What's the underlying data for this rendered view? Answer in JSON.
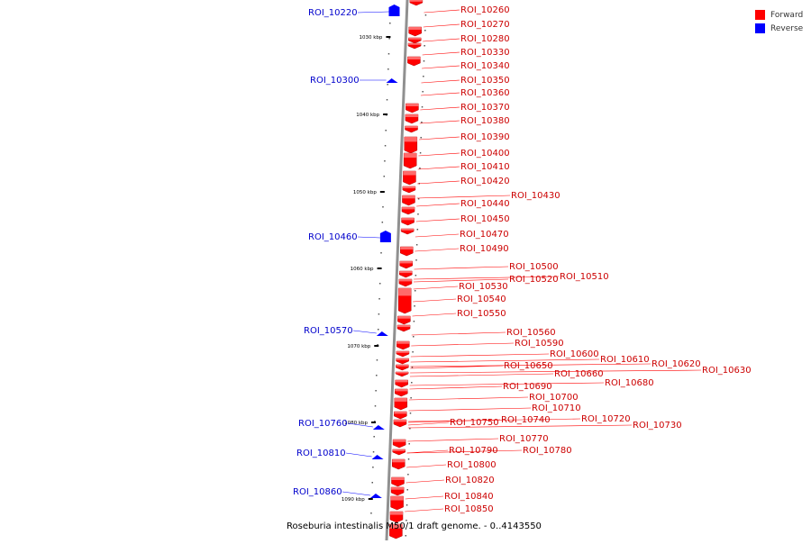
{
  "caption": "Roseburia intestinalis M50/1 draft genome. - 0..4143550",
  "legend": [
    {
      "label": "Forward",
      "color": "#ff0000"
    },
    {
      "label": "Reverse",
      "color": "#0000ff"
    }
  ],
  "colors": {
    "forward": "#ff0000",
    "reverse": "#0000ff",
    "backbone": "#909090"
  },
  "ticks": [
    "1030 kbp",
    "1040 kbp",
    "1050 kbp",
    "1060 kbp",
    "1070 kbp",
    "1080 kbp",
    "1090 kbp"
  ],
  "forward_labels": [
    "ROI_10260",
    "ROI_10270",
    "ROI_10280",
    "ROI_10330",
    "ROI_10340",
    "ROI_10350",
    "ROI_10360",
    "ROI_10370",
    "ROI_10380",
    "ROI_10390",
    "ROI_10400",
    "ROI_10410",
    "ROI_10420",
    "ROI_10430",
    "ROI_10440",
    "ROI_10450",
    "ROI_10470",
    "ROI_10490",
    "ROI_10500",
    "ROI_10510",
    "ROI_10520",
    "ROI_10530",
    "ROI_10540",
    "ROI_10550",
    "ROI_10560",
    "ROI_10590",
    "ROI_10600",
    "ROI_10610",
    "ROI_10620",
    "ROI_10630",
    "ROI_10650",
    "ROI_10660",
    "ROI_10680",
    "ROI_10690",
    "ROI_10700",
    "ROI_10710",
    "ROI_10720",
    "ROI_10730",
    "ROI_10740",
    "ROI_10750",
    "ROI_10770",
    "ROI_10780",
    "ROI_10790",
    "ROI_10800",
    "ROI_10820",
    "ROI_10840",
    "ROI_10850"
  ],
  "reverse_labels": [
    "ROI_10220",
    "ROI_10300",
    "ROI_10460",
    "ROI_10570",
    "ROI_10760",
    "ROI_10810",
    "ROI_10860"
  ]
}
